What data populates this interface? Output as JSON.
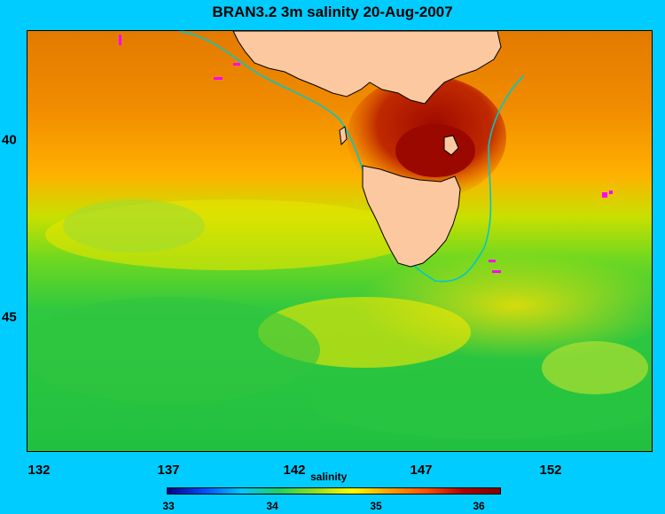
{
  "title": "BRAN3.2 3m salinity 20-Aug-2007",
  "y_axis_labels": [
    "40",
    "45"
  ],
  "x_axis_labels": [
    "132",
    "137",
    "142",
    "147",
    "152"
  ],
  "colorbar": {
    "title": "salinity",
    "ticks": [
      "33",
      "34",
      "35",
      "36"
    ],
    "range": [
      33,
      36.2
    ],
    "colors": [
      "#00008b",
      "#0050ff",
      "#00c8ff",
      "#20d060",
      "#90e020",
      "#ffff00",
      "#ffa000",
      "#ff5000",
      "#b00000",
      "#800000"
    ]
  },
  "map": {
    "region": "Southern Australia / Tasmania",
    "land_color": "#fbc8a0",
    "ocean_colors": {
      "north_bass_strait": "#a01000",
      "north": "#ff9a00",
      "mid": "#e0e000",
      "south": "#20c840"
    }
  }
}
